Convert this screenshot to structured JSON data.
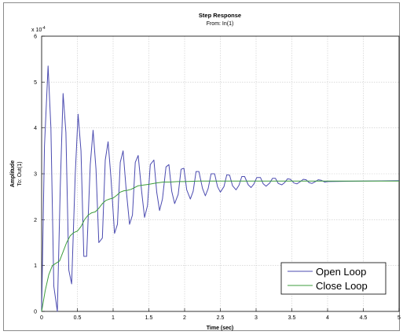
{
  "chart_data": {
    "type": "line",
    "title": "Step Response",
    "subtitle": "From: In(1)",
    "xlabel": "Time (sec)",
    "ylabel": "Amplitude",
    "ylabel2": "To: Out(1)",
    "y_exponent_label": "x 10",
    "y_exponent_power": "-4",
    "xlim": [
      0,
      5
    ],
    "ylim": [
      0,
      6
    ],
    "x_ticks": [
      "0",
      "0.5",
      "1",
      "1.5",
      "2",
      "2.5",
      "3",
      "3.5",
      "4",
      "4.5",
      "5"
    ],
    "y_ticks": [
      "0",
      "1",
      "2",
      "3",
      "4",
      "5",
      "6"
    ],
    "grid": true,
    "legend_position": "bottom-right",
    "series": [
      {
        "name": "Open Loop",
        "color": "#4b4bb0",
        "x": [
          0,
          0.04,
          0.09,
          0.13,
          0.17,
          0.22,
          0.26,
          0.3,
          0.34,
          0.38,
          0.42,
          0.47,
          0.51,
          0.55,
          0.59,
          0.63,
          0.68,
          0.72,
          0.76,
          0.8,
          0.85,
          0.89,
          0.93,
          0.97,
          1.02,
          1.06,
          1.1,
          1.14,
          1.18,
          1.23,
          1.27,
          1.31,
          1.35,
          1.4,
          1.44,
          1.48,
          1.52,
          1.57,
          1.61,
          1.65,
          1.69,
          1.74,
          1.78,
          1.82,
          1.86,
          1.91,
          1.95,
          1.99,
          2.03,
          2.08,
          2.12,
          2.16,
          2.2,
          2.25,
          2.29,
          2.33,
          2.37,
          2.42,
          2.46,
          2.5,
          2.55,
          2.59,
          2.63,
          2.67,
          2.72,
          2.76,
          2.8,
          2.84,
          2.89,
          2.93,
          2.97,
          3.01,
          3.06,
          3.1,
          3.14,
          3.19,
          3.23,
          3.27,
          3.31,
          3.36,
          3.4,
          3.44,
          3.48,
          3.53,
          3.57,
          3.61,
          3.66,
          3.7,
          3.74,
          3.78,
          3.83,
          3.87,
          3.91,
          3.96,
          4.0,
          4.5,
          5.0
        ],
        "y": [
          0.0,
          3.6,
          5.35,
          4.0,
          0.55,
          0.0,
          2.7,
          4.75,
          3.9,
          0.9,
          0.6,
          3.0,
          4.3,
          3.5,
          1.2,
          1.2,
          3.2,
          3.95,
          3.1,
          1.5,
          1.6,
          3.3,
          3.7,
          2.9,
          1.7,
          1.9,
          3.25,
          3.5,
          2.7,
          1.9,
          2.1,
          3.25,
          3.4,
          2.6,
          2.05,
          2.3,
          3.2,
          3.3,
          2.6,
          2.2,
          2.45,
          3.15,
          3.2,
          2.62,
          2.35,
          2.55,
          3.1,
          3.12,
          2.65,
          2.45,
          2.62,
          3.05,
          3.05,
          2.68,
          2.52,
          2.68,
          3.0,
          3.0,
          2.72,
          2.6,
          2.72,
          2.98,
          2.97,
          2.74,
          2.65,
          2.75,
          2.94,
          2.94,
          2.76,
          2.7,
          2.78,
          2.92,
          2.92,
          2.78,
          2.73,
          2.8,
          2.9,
          2.9,
          2.79,
          2.76,
          2.81,
          2.89,
          2.88,
          2.8,
          2.78,
          2.82,
          2.88,
          2.87,
          2.81,
          2.79,
          2.83,
          2.87,
          2.86,
          2.82,
          2.83,
          2.84,
          2.85
        ]
      },
      {
        "name": "Close Loop",
        "color": "#3c9c3c",
        "x": [
          0,
          0.05,
          0.1,
          0.15,
          0.2,
          0.25,
          0.3,
          0.35,
          0.4,
          0.45,
          0.5,
          0.55,
          0.6,
          0.65,
          0.7,
          0.75,
          0.8,
          0.85,
          0.9,
          0.95,
          1.0,
          1.05,
          1.1,
          1.15,
          1.2,
          1.25,
          1.3,
          1.35,
          1.4,
          1.45,
          1.5,
          1.6,
          1.7,
          1.8,
          1.9,
          2.0,
          2.2,
          2.4,
          2.6,
          2.8,
          3.0,
          3.5,
          4.0,
          4.5,
          5.0
        ],
        "y": [
          0.0,
          0.45,
          0.8,
          1.0,
          1.05,
          1.1,
          1.3,
          1.5,
          1.65,
          1.72,
          1.75,
          1.85,
          2.0,
          2.1,
          2.15,
          2.17,
          2.25,
          2.35,
          2.42,
          2.45,
          2.47,
          2.53,
          2.6,
          2.63,
          2.64,
          2.66,
          2.7,
          2.74,
          2.75,
          2.76,
          2.77,
          2.8,
          2.82,
          2.82,
          2.83,
          2.83,
          2.84,
          2.84,
          2.84,
          2.84,
          2.84,
          2.84,
          2.84,
          2.84,
          2.84
        ]
      }
    ]
  }
}
